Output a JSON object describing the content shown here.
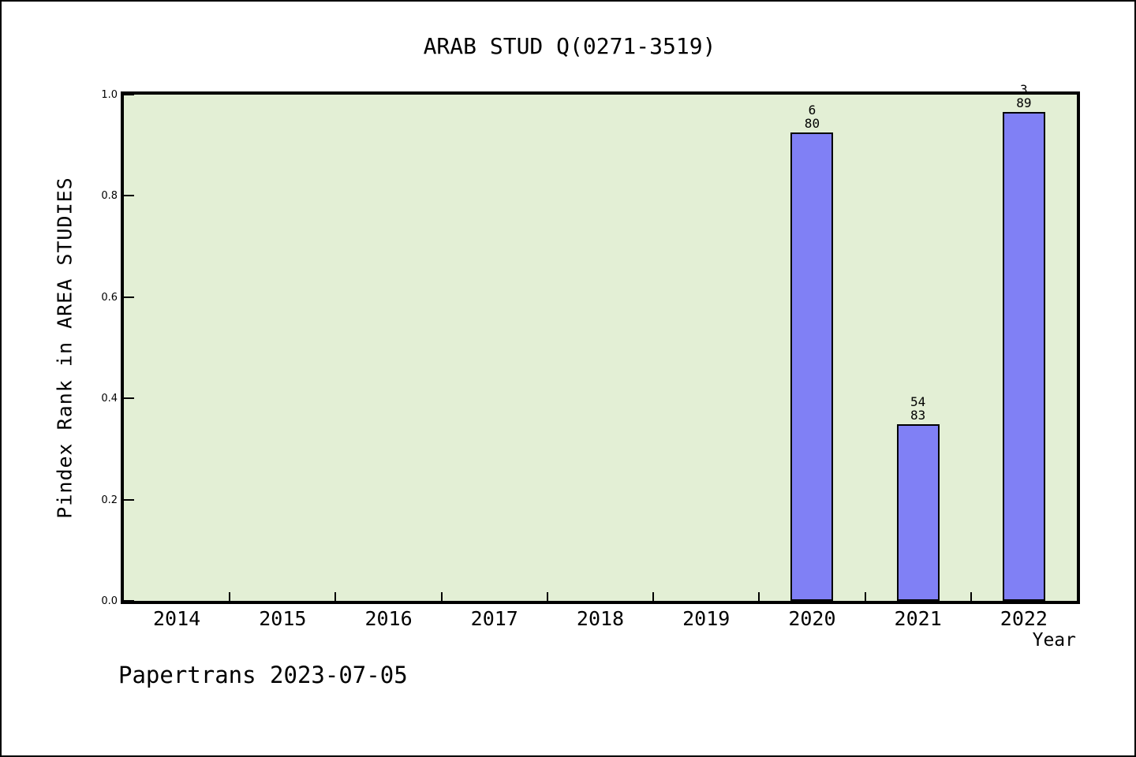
{
  "page": {
    "caption": "Papertrans 2023-07-05"
  },
  "chart_data": {
    "type": "bar",
    "title": "ARAB STUD Q(0271-3519)",
    "xlabel": "Year",
    "ylabel": "Pindex Rank in AREA STUDIES",
    "categories": [
      "2014",
      "2015",
      "2016",
      "2017",
      "2018",
      "2019",
      "2020",
      "2021",
      "2022"
    ],
    "series": [
      {
        "name": "Pindex Rank in AREA STUDIES",
        "values": [
          null,
          null,
          null,
          null,
          null,
          null,
          0.925,
          0.349,
          0.966
        ]
      }
    ],
    "bar_annotations": [
      {
        "category": "2020",
        "rank": "6",
        "total": "80"
      },
      {
        "category": "2021",
        "rank": "54",
        "total": "83"
      },
      {
        "category": "2022",
        "rank": "3",
        "total": "89"
      }
    ],
    "ylim": [
      0.0,
      1.0
    ],
    "yticks": [
      "0.0",
      "0.2",
      "0.4",
      "0.6",
      "0.8",
      "1.0"
    ],
    "grid": false,
    "legend": null,
    "colors": {
      "bar_fill": "#8080f5",
      "bar_edge": "#000000",
      "plot_bg": "#e3efd5",
      "page_bg": "#ffffff",
      "axis": "#000000"
    }
  }
}
